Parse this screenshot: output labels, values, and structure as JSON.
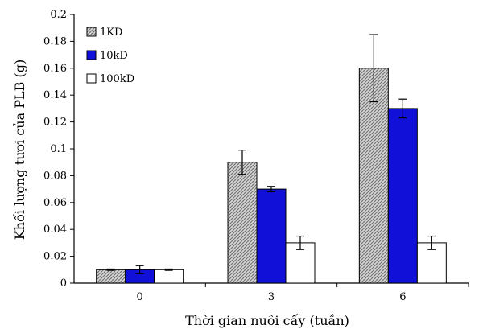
{
  "chart_data": {
    "type": "bar",
    "categories": [
      "0",
      "3",
      "6"
    ],
    "series": [
      {
        "name": "1KD",
        "values": [
          0.01,
          0.09,
          0.16
        ],
        "errors": [
          0.0005,
          0.009,
          0.025
        ],
        "pattern": "hatch",
        "color": "#9a9a9a"
      },
      {
        "name": "10kD",
        "values": [
          0.01,
          0.07,
          0.13
        ],
        "errors": [
          0.003,
          0.002,
          0.007
        ],
        "color": "#1010d8"
      },
      {
        "name": "100kD",
        "values": [
          0.01,
          0.03,
          0.03
        ],
        "errors": [
          0.0005,
          0.005,
          0.005
        ],
        "color": "#ffffff"
      }
    ],
    "xlabel": "Thời gian nuôi cấy (tuần)",
    "ylabel": "Khối lượng tươi của PLB (g)",
    "ylim": [
      0,
      0.2
    ],
    "yticks": [
      "0",
      "0.02",
      "0.04",
      "0.06",
      "0.08",
      "0.1",
      "0.12",
      "0.14",
      "0.16",
      "0.18",
      "0.2"
    ],
    "legend_position": "top-left",
    "grid": false
  }
}
